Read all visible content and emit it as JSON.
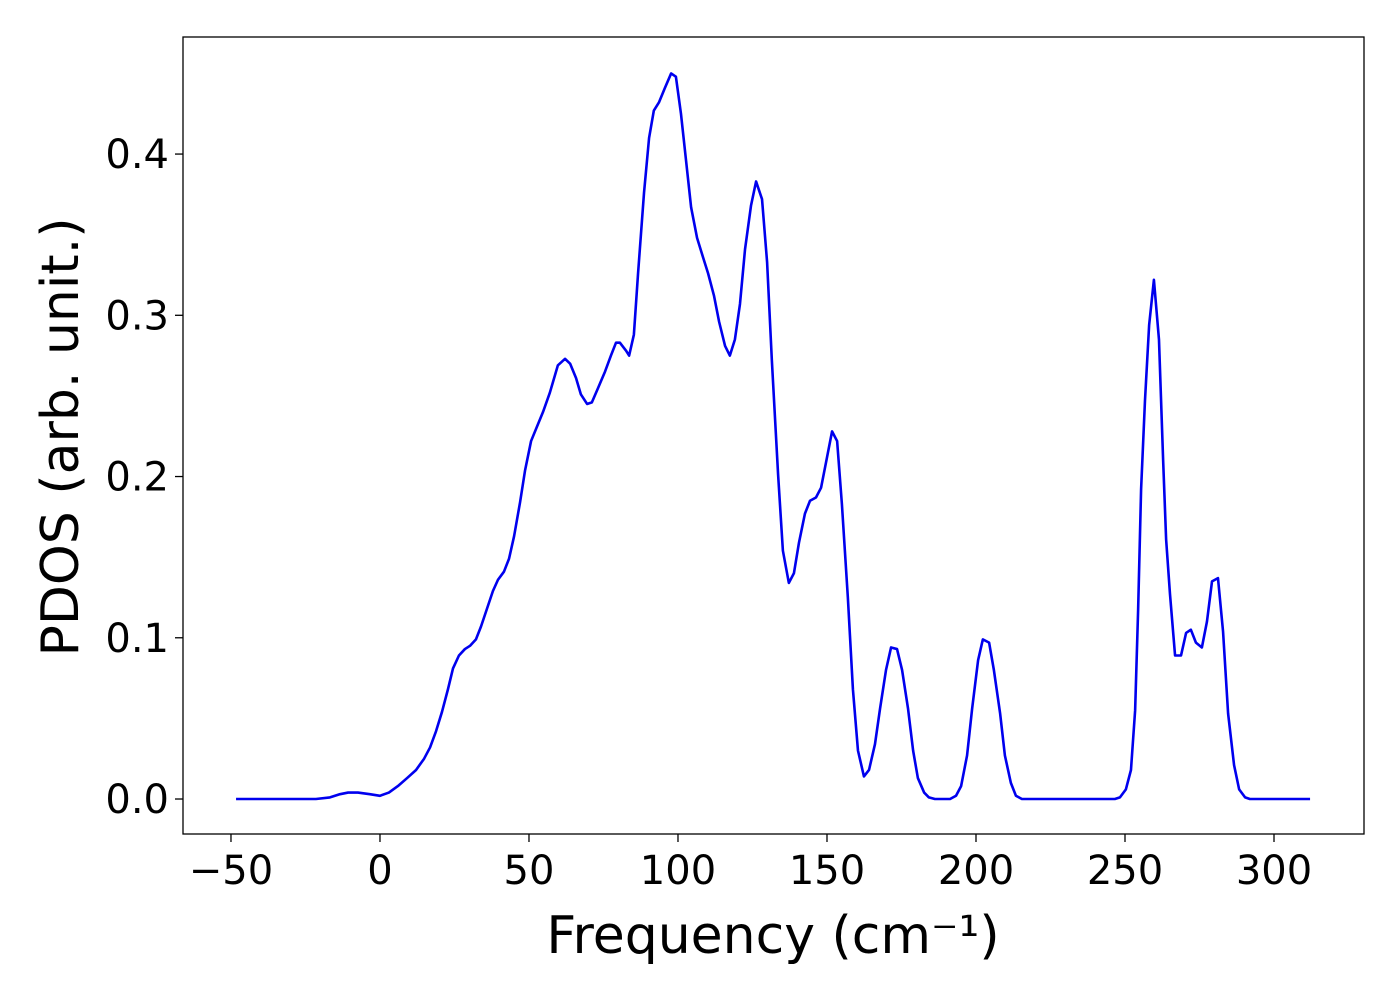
{
  "chart_data": {
    "type": "line",
    "xlabel": "Frequency (cm⁻¹)",
    "ylabel": "PDOS (arb. unit.)",
    "color": "#0000ee",
    "xlim": [
      -66.1,
      330.2
    ],
    "ylim": [
      -0.0217,
      0.4726
    ],
    "xticks": [
      {
        "value": -50,
        "label": "−50"
      },
      0,
      50,
      100,
      150,
      200,
      250,
      300
    ],
    "yticks": [
      {
        "value": 0,
        "label": "0.0"
      },
      0.1,
      0.2,
      0.3,
      0.4
    ],
    "grid": false,
    "x": [
      -48.3,
      -21.5,
      -16.8,
      -13.4,
      -10.7,
      -7.4,
      -3.4,
      0,
      3,
      6,
      9.1,
      12.1,
      14.8,
      16.8,
      18.8,
      20.8,
      22.8,
      24.5,
      26.5,
      28.5,
      30.2,
      32.2,
      33.9,
      35.9,
      37.9,
      39.6,
      41.6,
      43.3,
      45,
      47,
      48.7,
      50.7,
      52.7,
      54.7,
      57.0,
      59.7,
      62.1,
      63.8,
      65.8,
      67.4,
      69.5,
      71.1,
      73.2,
      75.5,
      77.5,
      79.2,
      80.5,
      82.6,
      83.6,
      85.2,
      86.6,
      88.6,
      90.3,
      91.9,
      93.6,
      95.6,
      97.7,
      99.3,
      101.0,
      102.7,
      104.4,
      106.4,
      108.4,
      110.1,
      112.1,
      113.8,
      115.8,
      117.4,
      119.1,
      120.8,
      122.5,
      124.5,
      126.2,
      128.2,
      129.9,
      131.5,
      133.6,
      135.2,
      137.2,
      138.9,
      140.6,
      142.6,
      144.3,
      146.3,
      148.0,
      149.7,
      151.7,
      153.4,
      155.0,
      157.0,
      158.7,
      160.4,
      162.4,
      164.1,
      166.1,
      167.8,
      169.8,
      171.5,
      173.5,
      175.2,
      177.2,
      178.9,
      180.5,
      182.6,
      184.2,
      186.2,
      191.3,
      193.3,
      195.0,
      197.0,
      198.7,
      200.7,
      202.3,
      204.4,
      206.0,
      208.1,
      209.7,
      211.7,
      213.4,
      215.4,
      217.4,
      246.6,
      248.3,
      250.3,
      252.0,
      253.4,
      254.4,
      255.4,
      256.7,
      258.1,
      259.7,
      261.4,
      262.8,
      263.8,
      265.1,
      266.8,
      268.8,
      270.5,
      272.1,
      273.8,
      275.8,
      277.5,
      279.2,
      281.2,
      282.9,
      284.6,
      286.6,
      288.3,
      290.3,
      291.9,
      312.1
    ],
    "values": [
      0,
      0,
      0.001,
      0.003,
      0.004,
      0.004,
      0.003,
      0.002,
      0.004,
      0.008,
      0.013,
      0.018,
      0.025,
      0.032,
      0.042,
      0.054,
      0.068,
      0.081,
      0.089,
      0.093,
      0.095,
      0.099,
      0.107,
      0.118,
      0.129,
      0.136,
      0.141,
      0.149,
      0.163,
      0.184,
      0.204,
      0.222,
      0.231,
      0.24,
      0.252,
      0.269,
      0.273,
      0.27,
      0.261,
      0.251,
      0.245,
      0.246,
      0.255,
      0.265,
      0.275,
      0.283,
      0.283,
      0.278,
      0.275,
      0.288,
      0.326,
      0.376,
      0.41,
      0.427,
      0.432,
      0.441,
      0.45,
      0.448,
      0.425,
      0.396,
      0.367,
      0.348,
      0.336,
      0.326,
      0.312,
      0.296,
      0.281,
      0.275,
      0.285,
      0.307,
      0.341,
      0.368,
      0.383,
      0.372,
      0.333,
      0.272,
      0.201,
      0.154,
      0.134,
      0.14,
      0.159,
      0.177,
      0.185,
      0.187,
      0.193,
      0.209,
      0.228,
      0.222,
      0.183,
      0.125,
      0.068,
      0.03,
      0.014,
      0.018,
      0.034,
      0.056,
      0.08,
      0.094,
      0.093,
      0.08,
      0.056,
      0.03,
      0.013,
      0.004,
      0.001,
      0,
      0,
      0.002,
      0.008,
      0.027,
      0.056,
      0.086,
      0.099,
      0.097,
      0.08,
      0.053,
      0.027,
      0.01,
      0.002,
      0,
      0,
      0,
      0.001,
      0.006,
      0.018,
      0.055,
      0.117,
      0.192,
      0.247,
      0.294,
      0.322,
      0.285,
      0.21,
      0.161,
      0.127,
      0.089,
      0.089,
      0.103,
      0.105,
      0.097,
      0.094,
      0.11,
      0.135,
      0.137,
      0.104,
      0.053,
      0.021,
      0.006,
      0.001,
      0,
      0
    ]
  }
}
